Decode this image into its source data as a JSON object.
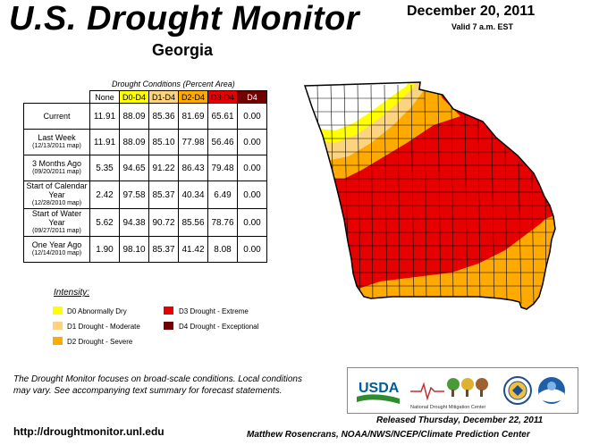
{
  "header": {
    "title": "U.S. Drought Monitor",
    "state": "Georgia",
    "date": "December 20, 2011",
    "valid": "Valid 7 a.m. EST"
  },
  "table": {
    "caption": "Drought Conditions (Percent Area)",
    "headers": [
      "None",
      "D0-D4",
      "D1-D4",
      "D2-D4",
      "D3-D4",
      "D4"
    ],
    "header_colors": [
      "#ffffff",
      "#ffff00",
      "#fcd37f",
      "#ffaa00",
      "#e60000",
      "#730000"
    ],
    "header_text_colors": [
      "#000000",
      "#000000",
      "#000000",
      "#000000",
      "#000000",
      "#ffffff"
    ],
    "rows": [
      {
        "label": "Current",
        "sublabel": "",
        "values": [
          "11.91",
          "88.09",
          "85.36",
          "81.69",
          "65.61",
          "0.00"
        ]
      },
      {
        "label": "Last Week",
        "sublabel": "(12/13/2011 map)",
        "values": [
          "11.91",
          "88.09",
          "85.10",
          "77.98",
          "56.46",
          "0.00"
        ]
      },
      {
        "label": "3 Months Ago",
        "sublabel": "(09/20/2011 map)",
        "values": [
          "5.35",
          "94.65",
          "91.22",
          "86.43",
          "79.48",
          "0.00"
        ]
      },
      {
        "label": "Start of Calendar Year",
        "sublabel": "(12/28/2010 map)",
        "values": [
          "2.42",
          "97.58",
          "85.37",
          "40.34",
          "6.49",
          "0.00"
        ]
      },
      {
        "label": "Start of Water Year",
        "sublabel": "(09/27/2011 map)",
        "values": [
          "5.62",
          "94.38",
          "90.72",
          "85.56",
          "78.76",
          "0.00"
        ]
      },
      {
        "label": "One Year Ago",
        "sublabel": "(12/14/2010 map)",
        "values": [
          "1.90",
          "98.10",
          "85.37",
          "41.42",
          "8.08",
          "0.00"
        ]
      }
    ]
  },
  "legend": {
    "title": "Intensity:",
    "items": [
      {
        "label": "D0 Abnormally Dry",
        "color": "#ffff00"
      },
      {
        "label": "D1 Drought - Moderate",
        "color": "#fcd37f"
      },
      {
        "label": "D2 Drought - Severe",
        "color": "#ffaa00"
      },
      {
        "label": "D3 Drought - Extreme",
        "color": "#e60000"
      },
      {
        "label": "D4 Drought - Exceptional",
        "color": "#730000"
      }
    ]
  },
  "footer": {
    "note": "The Drought Monitor focuses on broad-scale conditions. Local conditions may vary. See accompanying text summary for forecast statements.",
    "url": "http://droughtmonitor.unl.edu",
    "released": "Released Thursday, December 22, 2011",
    "author": "Matthew Rosencrans, NOAA/NWS/NCEP/Climate Prediction Center"
  },
  "logos": {
    "usda": "USDA",
    "ndmc": "National Drought Mitigation Center"
  }
}
